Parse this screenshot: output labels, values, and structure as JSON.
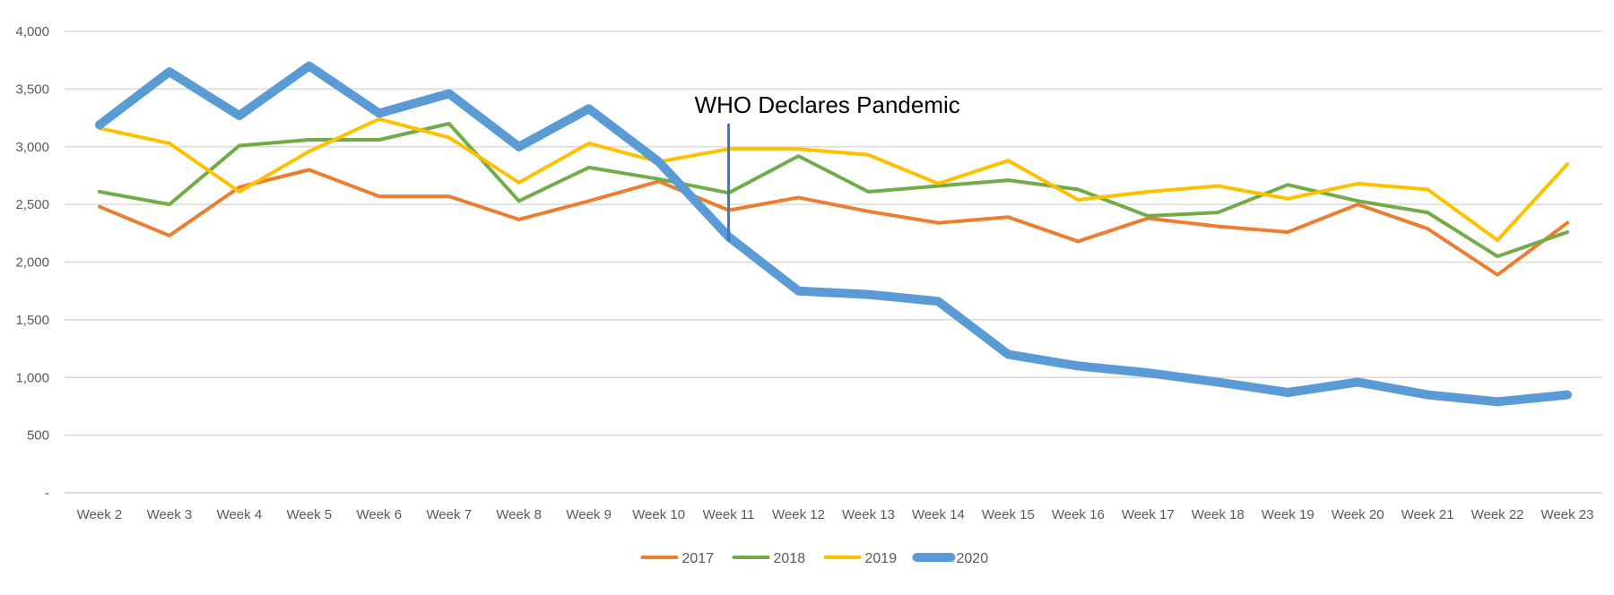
{
  "chart_data": {
    "type": "line",
    "title": "",
    "xlabel": "",
    "ylabel": "",
    "ylim": [
      0,
      4000
    ],
    "y_ticks": [
      0,
      500,
      1000,
      1500,
      2000,
      2500,
      3000,
      3500,
      4000
    ],
    "y_tick_labels": [
      "-",
      "500",
      "1,000",
      "1,500",
      "2,000",
      "2,500",
      "3,000",
      "3,500",
      "4,000"
    ],
    "grid": "horizontal",
    "legend_position": "bottom",
    "categories": [
      "Week 2",
      "Week 3",
      "Week 4",
      "Week 5",
      "Week 6",
      "Week 7",
      "Week 8",
      "Week 9",
      "Week 10",
      "Week 11",
      "Week 12",
      "Week 13",
      "Week 14",
      "Week 15",
      "Week 16",
      "Week 17",
      "Week 18",
      "Week 19",
      "Week 20",
      "Week 21",
      "Week 22",
      "Week 23"
    ],
    "series": [
      {
        "name": "2017",
        "color": "#ED7D31",
        "width": "thin",
        "values": [
          2480,
          2230,
          2650,
          2800,
          2570,
          2570,
          2370,
          2530,
          2700,
          2450,
          2560,
          2440,
          2340,
          2390,
          2180,
          2380,
          2310,
          2260,
          2500,
          2290,
          1890,
          2340
        ]
      },
      {
        "name": "2018",
        "color": "#70AD47",
        "width": "thin",
        "values": [
          2610,
          2500,
          3010,
          3060,
          3060,
          3200,
          2530,
          2820,
          2720,
          2600,
          2920,
          2610,
          2660,
          2710,
          2630,
          2400,
          2430,
          2670,
          2530,
          2430,
          2050,
          2260
        ]
      },
      {
        "name": "2019",
        "color": "#FFC000",
        "width": "thin",
        "values": [
          3160,
          3030,
          2610,
          2960,
          3240,
          3080,
          2690,
          3030,
          2870,
          2980,
          2980,
          2930,
          2680,
          2880,
          2540,
          2610,
          2660,
          2550,
          2680,
          2630,
          2190,
          2850
        ]
      },
      {
        "name": "2020",
        "color": "#5B9BD5",
        "width": "thick",
        "values": [
          3190,
          3650,
          3270,
          3700,
          3290,
          3460,
          3000,
          3330,
          2870,
          2220,
          1750,
          1720,
          1660,
          1200,
          1100,
          1040,
          960,
          870,
          960,
          850,
          790,
          850
        ]
      }
    ],
    "annotations": [
      {
        "text": "WHO Declares Pandemic",
        "category": "Week 11",
        "line_from": 2180,
        "line_to": 3200
      }
    ]
  }
}
